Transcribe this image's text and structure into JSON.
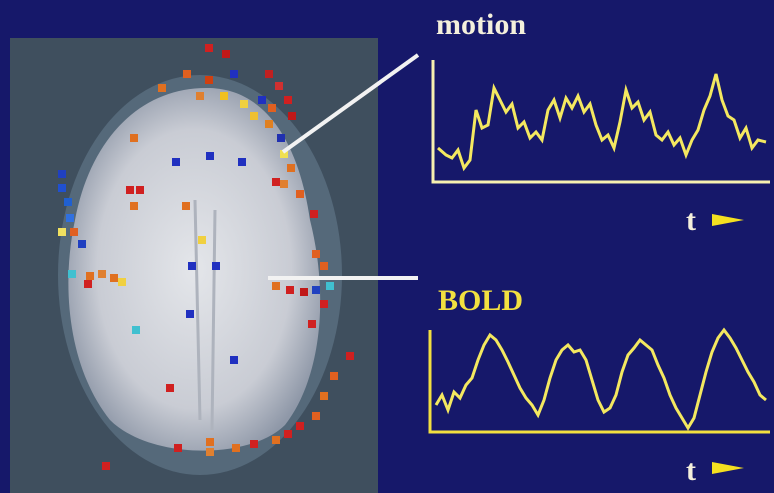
{
  "labels": {
    "motion": "motion",
    "bold": "BOLD",
    "time_top": "t",
    "time_bottom": "t"
  }
}
